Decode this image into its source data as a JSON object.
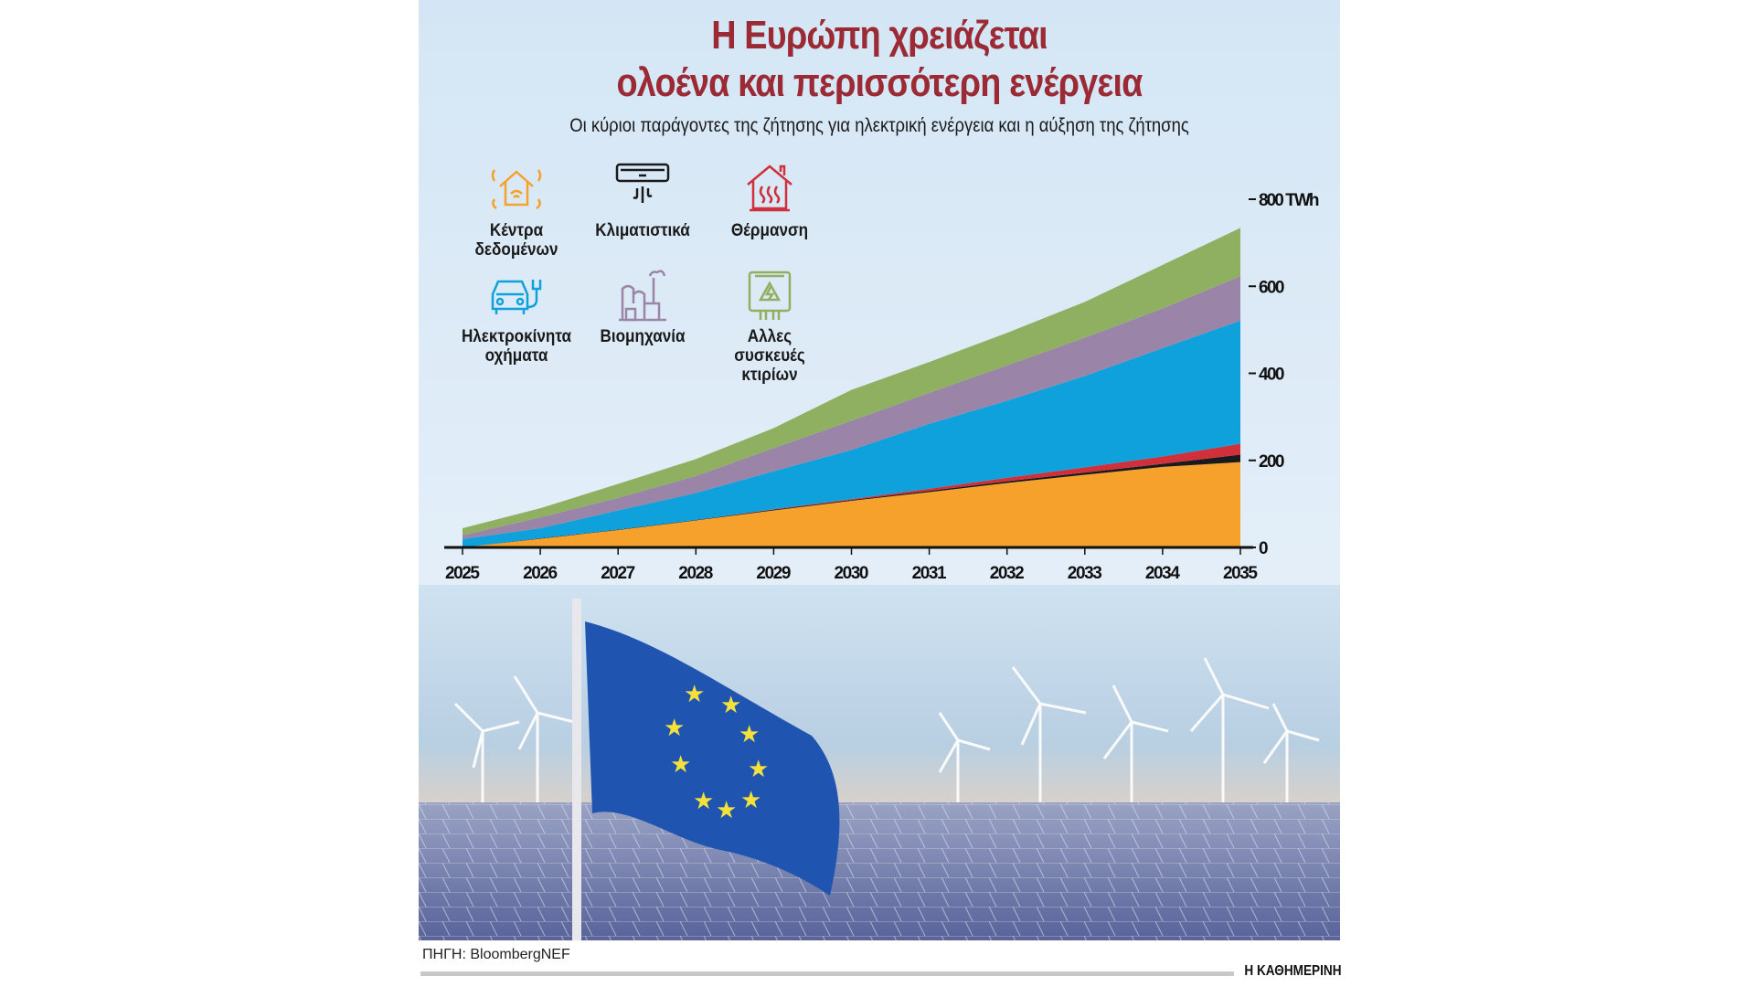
{
  "header": {
    "title_line1": "Η Ευρώπη χρειάζεται",
    "title_line2": "ολοένα και περισσότερη ενέργεια",
    "subtitle": "Οι κύριοι παράγοντες της ζήτησης για ηλεκτρική ενέργεια  και η αύξηση της ζήτησης"
  },
  "legend": [
    {
      "label_line1": "Κέντρα",
      "label_line2": "δεδομένων",
      "label_line3": "",
      "icon": "smart-house-icon",
      "color": "#f5a12c"
    },
    {
      "label_line1": "Κλιματιστικά",
      "label_line2": "",
      "label_line3": "",
      "icon": "air-conditioner-icon",
      "color": "#1a1a1a"
    },
    {
      "label_line1": "Θέρμανση",
      "label_line2": "",
      "label_line3": "",
      "icon": "heating-house-icon",
      "color": "#d0303a"
    },
    {
      "label_line1": "Ηλεκτροκίνητα",
      "label_line2": "οχήματα",
      "label_line3": "",
      "icon": "electric-car-icon",
      "color": "#0ea1dc"
    },
    {
      "label_line1": "Βιομηχανία",
      "label_line2": "",
      "label_line3": "",
      "icon": "factory-icon",
      "color": "#9a85a8"
    },
    {
      "label_line1": "Αλλες",
      "label_line2": "συσκευές",
      "label_line3": "κτιρίων",
      "icon": "electrical-panel-icon",
      "color": "#8fb060"
    }
  ],
  "chart_data": {
    "type": "area",
    "stacked": true,
    "x": [
      2025,
      2026,
      2027,
      2028,
      2029,
      2030,
      2031,
      2032,
      2033,
      2034,
      2035
    ],
    "x_tick_labels": [
      "2025",
      "2026",
      "2027",
      "2028",
      "2029",
      "2030",
      "2031",
      "2032",
      "2033",
      "2034",
      "2035"
    ],
    "y_ticks": [
      0,
      200,
      400,
      600,
      800
    ],
    "y_tick_labels": [
      "0",
      "200",
      "400",
      "600",
      "800 TWh"
    ],
    "ylim": [
      0,
      800
    ],
    "grid": "dotted lines at 200, 400, 600, 800",
    "series": [
      {
        "name": "Κέντρα δεδομένων",
        "color": "#f5a12c",
        "values": [
          0,
          20,
          40,
          62,
          85,
          107,
          127,
          148,
          167,
          185,
          196
        ]
      },
      {
        "name": "Κλιματιστικά",
        "color": "#1a1a1a",
        "values": [
          0,
          1,
          1,
          1,
          2,
          2,
          3,
          4,
          5,
          7,
          17
        ]
      },
      {
        "name": "Θέρμανση",
        "color": "#d0303a",
        "values": [
          0,
          0,
          0,
          0,
          1,
          2,
          5,
          8,
          12,
          17,
          25
        ]
      },
      {
        "name": "Ηλεκτροκίνητα οχήματα",
        "color": "#0ea1dc",
        "values": [
          19,
          23,
          44,
          62,
          87,
          113,
          149,
          177,
          210,
          249,
          283
        ]
      },
      {
        "name": "Βιομηχανία",
        "color": "#9a85a8",
        "values": [
          9,
          25,
          29,
          39,
          53,
          67,
          71,
          81,
          88,
          91,
          102
        ]
      },
      {
        "name": "Αλλες συσκευές κτιρίων",
        "color": "#8fb060",
        "values": [
          16,
          21,
          32,
          39,
          46,
          71,
          71,
          75,
          82,
          100,
          111
        ]
      }
    ]
  },
  "footer": {
    "source": "ΠΗΓΗ: BloombergNEF",
    "brand": "Η ΚΑΘΗΜΕΡΙΝΗ"
  }
}
